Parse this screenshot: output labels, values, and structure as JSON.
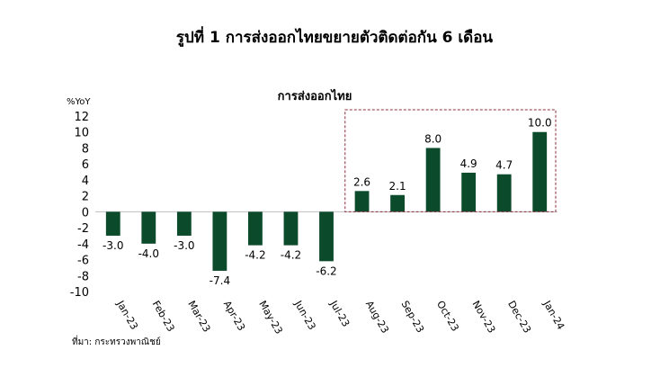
{
  "figure": {
    "title": "รูปที่ 1 การส่งออกไทยขยายตัวติดต่อกัน 6 เดือน",
    "source": "ที่มา: กระทรวงพาณิชย์"
  },
  "chart_data": {
    "type": "bar",
    "title": "การส่งออกไทย",
    "ylabel": "%YoY",
    "xlabel": "",
    "categories": [
      "Jan-23",
      "Feb-23",
      "Mar-23",
      "Apr-23",
      "May-23",
      "Jun-23",
      "Jul-23",
      "Aug-23",
      "Sep-23",
      "Oct-23",
      "Nov-23",
      "Dec-23",
      "Jan-24"
    ],
    "values": [
      -3.0,
      -4.0,
      -3.0,
      -7.4,
      -4.2,
      -4.2,
      -6.2,
      2.6,
      2.1,
      8.0,
      4.9,
      4.7,
      10.0
    ],
    "value_labels": [
      "-3.0",
      "-4.0",
      "-3.0",
      "-7.4",
      "-4.2",
      "-4.2",
      "-6.2",
      "2.6",
      "2.1",
      "8.0",
      "4.9",
      "4.7",
      "10.0"
    ],
    "ylim": [
      -10,
      12
    ],
    "yticks": [
      "12",
      "10",
      "8",
      "6",
      "4",
      "2",
      "0",
      "-2",
      "-4",
      "-6",
      "-8",
      "-10"
    ],
    "grid": false,
    "bar_color": "#0b4a2a",
    "highlight": {
      "from": "Aug-23",
      "to": "Jan-24",
      "style": "dashed",
      "color": "#8b2e3c"
    }
  }
}
